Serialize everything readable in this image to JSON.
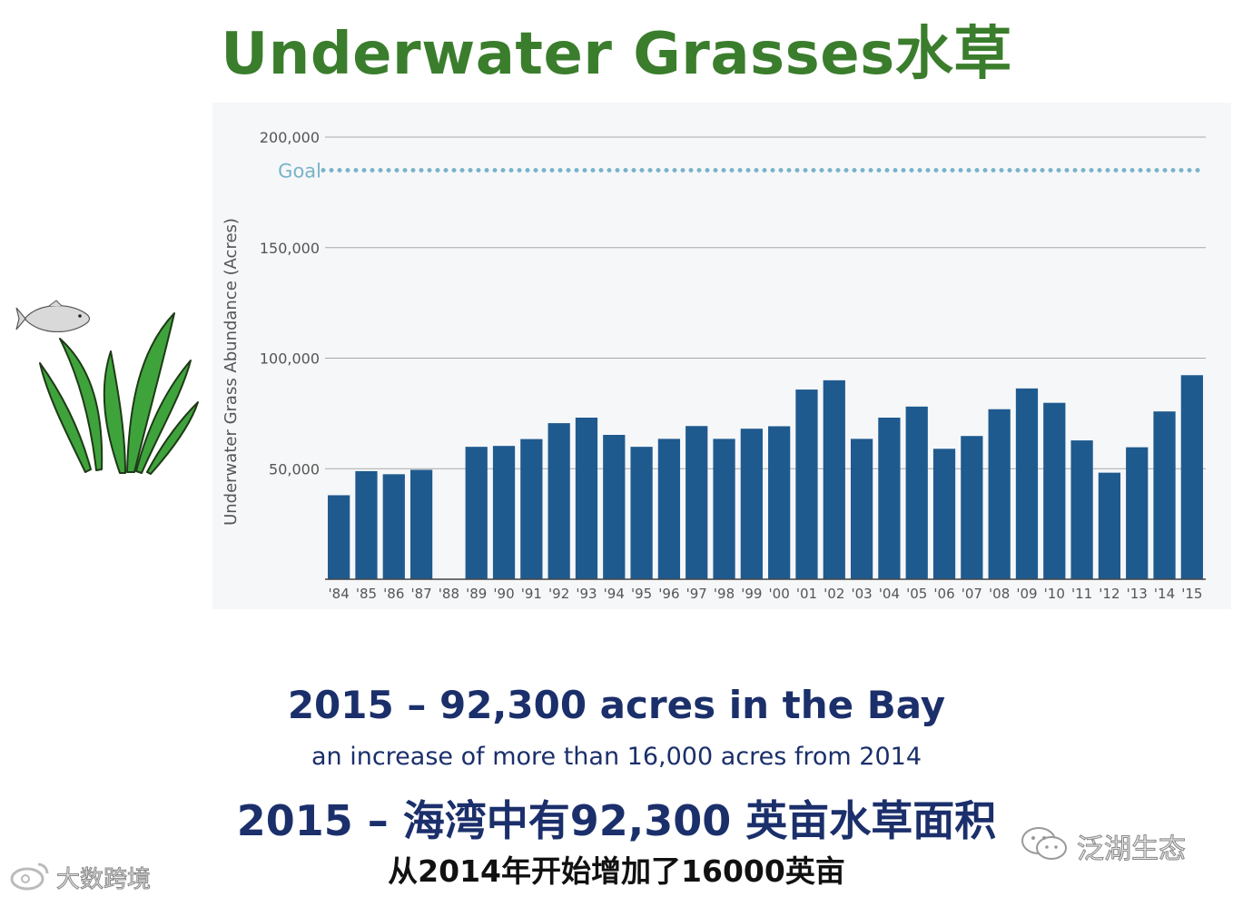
{
  "title": "Underwater Grasses水草",
  "chart_data": {
    "type": "bar",
    "ylabel": "Underwater Grass Abundance (Acres)",
    "xlabel": "",
    "ylim": [
      0,
      200000
    ],
    "yticks": [
      50000,
      100000,
      150000,
      200000
    ],
    "ytick_labels": [
      "50,000",
      "100,000",
      "150,000",
      "200,000"
    ],
    "grid": true,
    "goal": {
      "label": "Goal",
      "value": 185000,
      "color": "#7ab3c9"
    },
    "bar_color": "#1f5a8f",
    "categories": [
      "'84",
      "'85",
      "'86",
      "'87",
      "'88",
      "'89",
      "'90",
      "'91",
      "'92",
      "'93",
      "'94",
      "'95",
      "'96",
      "'97",
      "'98",
      "'99",
      "'00",
      "'01",
      "'02",
      "'03",
      "'04",
      "'05",
      "'06",
      "'07",
      "'08",
      "'09",
      "'10",
      "'11",
      "'12",
      "'13",
      "'14",
      "'15"
    ],
    "values": [
      38000,
      48900,
      47500,
      49500,
      null,
      59900,
      60300,
      63400,
      70600,
      73100,
      65300,
      59900,
      63500,
      69300,
      63500,
      68100,
      69200,
      85800,
      90000,
      63500,
      73100,
      78100,
      59000,
      64800,
      76900,
      86300,
      79800,
      62800,
      48200,
      59700,
      75900,
      92300
    ]
  },
  "headline": {
    "line1": "2015 – 92,300 acres in the Bay",
    "line2": "an increase of more than 16,000 acres from 2014",
    "line3": "2015 – 海湾中有92,300 英亩水草面积",
    "line4": "从2014年开始增加了16000英亩"
  },
  "watermark": {
    "left": "大数跨境",
    "right": "泛湖生态"
  },
  "icons": [
    "fish-icon",
    "grass-icon",
    "weibo-icon",
    "wechat-icon"
  ]
}
